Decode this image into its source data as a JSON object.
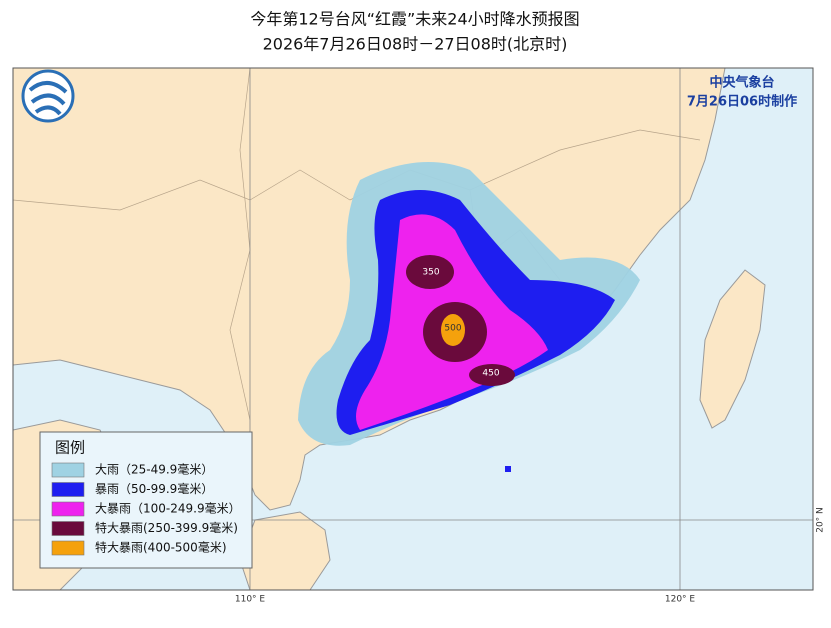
{
  "header": {
    "title": "今年第12号台风“红霞”未来24小时降水预报图",
    "subtitle": "2026年7月26日08时－27日08时(北京时)"
  },
  "agency": {
    "name": "中央气象台",
    "issued": "7月26日06时制作"
  },
  "legend": {
    "title": "图例",
    "items": [
      {
        "label": "大雨（25-49.9毫米）",
        "color": "#9fd2e3"
      },
      {
        "label": "暴雨（50-99.9毫米）",
        "color": "#1e1ef0"
      },
      {
        "label": "大暴雨（100-249.9毫米）",
        "color": "#ee22ee"
      },
      {
        "label": "特大暴雨(250-399.9毫米)",
        "color": "#6a0a3c"
      },
      {
        "label": "特大暴雨(400-500毫米)",
        "color": "#f5a10c"
      }
    ]
  },
  "contour_labels": [
    "350",
    "500",
    "450"
  ],
  "grid_labels": {
    "lon_110": "110° E",
    "lon_120": "120° E",
    "lat_20": "20° N"
  }
}
